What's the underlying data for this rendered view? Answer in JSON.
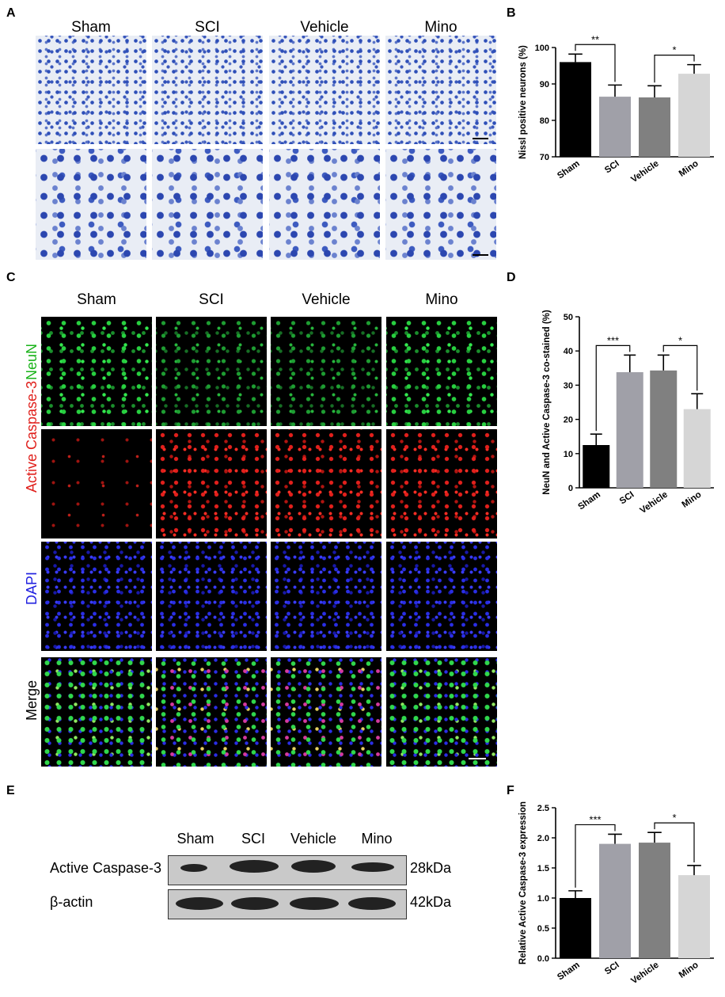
{
  "panel_labels": {
    "A": "A",
    "B": "B",
    "C": "C",
    "D": "D",
    "E": "E",
    "F": "F"
  },
  "panel_a": {
    "columns": [
      "Sham",
      "SCI",
      "Vehicle",
      "Mino"
    ]
  },
  "panel_c": {
    "columns": [
      "Sham",
      "SCI",
      "Vehicle",
      "Mino"
    ],
    "rows": [
      {
        "label": "NeuN",
        "color": "#19b319"
      },
      {
        "label": "Active Caspase-3",
        "color": "#e0201c"
      },
      {
        "label": "DAPI",
        "color": "#2020e0"
      },
      {
        "label": "Merge",
        "color": "#000000"
      }
    ]
  },
  "panel_e": {
    "lanes": [
      "Sham",
      "SCI",
      "Vehicle",
      "Mino"
    ],
    "rows": [
      {
        "label": "Active Caspase-3",
        "size": "28kDa"
      },
      {
        "label": "β-actin",
        "size": "42kDa"
      }
    ]
  },
  "chart_data": [
    {
      "panel": "B",
      "type": "bar",
      "categories": [
        "Sham",
        "SCI",
        "Vehicle",
        "Mino"
      ],
      "values": [
        96,
        86.5,
        86.3,
        92.8
      ],
      "errors": [
        2.2,
        3.2,
        3.2,
        2.5
      ],
      "colors": [
        "#000000",
        "#a0a0a8",
        "#808080",
        "#d6d6d6"
      ],
      "ylabel": "Nissl positive neurons (%)",
      "ylim": [
        70,
        100
      ],
      "yticks": [
        70,
        80,
        90,
        100
      ],
      "significance": [
        {
          "from": 0,
          "to": 1,
          "label": "**"
        },
        {
          "from": 2,
          "to": 3,
          "label": "*"
        }
      ]
    },
    {
      "panel": "D",
      "type": "bar",
      "categories": [
        "Sham",
        "SCI",
        "Vehicle",
        "Mino"
      ],
      "values": [
        12.5,
        33.8,
        34.3,
        23
      ],
      "errors": [
        3.2,
        5,
        4.5,
        4.5
      ],
      "colors": [
        "#000000",
        "#a0a0a8",
        "#808080",
        "#d6d6d6"
      ],
      "ylabel": "NeuN and Active Caspase-3 co-stained (%)",
      "ylim": [
        0,
        50
      ],
      "yticks": [
        0,
        10,
        20,
        30,
        40,
        50
      ],
      "significance": [
        {
          "from": 0,
          "to": 1,
          "label": "***"
        },
        {
          "from": 2,
          "to": 3,
          "label": "*"
        }
      ]
    },
    {
      "panel": "F",
      "type": "bar",
      "categories": [
        "Sham",
        "SCI",
        "Vehicle",
        "Mino"
      ],
      "values": [
        1.0,
        1.9,
        1.92,
        1.38
      ],
      "errors": [
        0.12,
        0.16,
        0.17,
        0.16
      ],
      "colors": [
        "#000000",
        "#a0a0a8",
        "#808080",
        "#d6d6d6"
      ],
      "ylabel": "Relative Active Caspase-3 expression",
      "ylim": [
        0,
        2.5
      ],
      "yticks": [
        "0.0",
        "0.5",
        "1.0",
        "1.5",
        "2.0",
        "2.5"
      ],
      "significance": [
        {
          "from": 0,
          "to": 1,
          "label": "***"
        },
        {
          "from": 2,
          "to": 3,
          "label": "*"
        }
      ]
    }
  ]
}
